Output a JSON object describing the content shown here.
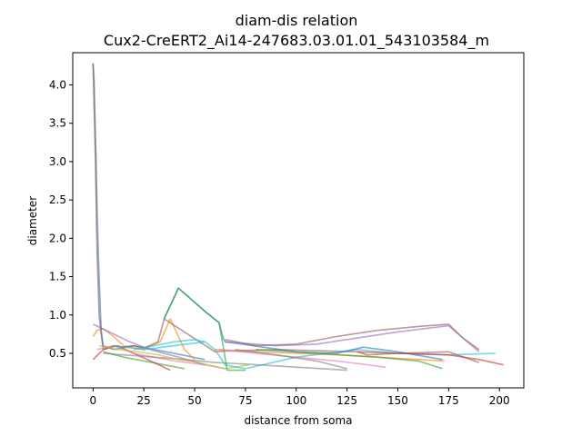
{
  "chart_data": {
    "type": "line",
    "title": "diam-dis relation",
    "subtitle": "Cux2-CreERT2_Ai14-247683.03.01.01_543103584_m",
    "xlabel": "distance from soma",
    "ylabel": "diameter",
    "xlim": [
      -10,
      212
    ],
    "ylim": [
      0.05,
      4.42
    ],
    "xticks": [
      0,
      25,
      50,
      75,
      100,
      125,
      150,
      175,
      200
    ],
    "yticks": [
      0.5,
      1.0,
      1.5,
      2.0,
      2.5,
      3.0,
      3.5,
      4.0
    ],
    "xtick_labels": [
      "0",
      "25",
      "50",
      "75",
      "100",
      "125",
      "150",
      "175",
      "200"
    ],
    "ytick_labels": [
      "0.5",
      "1.0",
      "1.5",
      "2.0",
      "2.5",
      "3.0",
      "3.5",
      "4.0"
    ],
    "grid": false,
    "legend": "none",
    "series": [
      {
        "color": "#1f77b4",
        "x": [
          0,
          0.5,
          1,
          1.5,
          2,
          2.5,
          3,
          3.5,
          4,
          4.5,
          5,
          10,
          20,
          30,
          40,
          55
        ],
        "y": [
          4.28,
          4.05,
          3.5,
          3.0,
          2.35,
          1.9,
          1.5,
          1.1,
          0.8,
          0.7,
          0.6,
          0.55,
          0.6,
          0.55,
          0.5,
          0.42
        ]
      },
      {
        "color": "#ff7f0e",
        "x": [
          0,
          2,
          5,
          10,
          15,
          25,
          33,
          38,
          45,
          50
        ],
        "y": [
          0.72,
          0.8,
          0.82,
          0.72,
          0.6,
          0.55,
          0.65,
          0.95,
          0.55,
          0.42
        ]
      },
      {
        "color": "#2ca02c",
        "x": [
          5,
          15,
          25,
          35,
          45
        ],
        "y": [
          0.52,
          0.45,
          0.4,
          0.35,
          0.3
        ]
      },
      {
        "color": "#d62728",
        "x": [
          0,
          5,
          12,
          20,
          30,
          38
        ],
        "y": [
          0.42,
          0.55,
          0.6,
          0.5,
          0.38,
          0.28
        ]
      },
      {
        "color": "#9467bd",
        "x": [
          0,
          8,
          18,
          28,
          42,
          55
        ],
        "y": [
          0.88,
          0.78,
          0.65,
          0.55,
          0.45,
          0.35
        ]
      },
      {
        "color": "#8c564b",
        "x": [
          0,
          1,
          2,
          3,
          4,
          5,
          10,
          15,
          20,
          25,
          32,
          35,
          60,
          65,
          90,
          130,
          135,
          150,
          175,
          190
        ],
        "y": [
          4.28,
          3.2,
          1.8,
          1.0,
          0.75,
          0.55,
          0.6,
          0.58,
          0.6,
          0.57,
          0.65,
          0.95,
          0.52,
          0.53,
          0.55,
          0.52,
          0.48,
          0.5,
          0.52,
          0.38
        ]
      },
      {
        "color": "#e377c2",
        "x": [
          2,
          10,
          20,
          30,
          40,
          55,
          65
        ],
        "y": [
          0.55,
          0.6,
          0.5,
          0.45,
          0.4,
          0.35,
          0.3
        ]
      },
      {
        "color": "#7f7f7f",
        "x": [
          5,
          15,
          30,
          45,
          60,
          75,
          100,
          125
        ],
        "y": [
          0.5,
          0.48,
          0.45,
          0.42,
          0.38,
          0.36,
          0.32,
          0.28
        ]
      },
      {
        "color": "#bcbd22",
        "x": [
          3,
          12,
          22,
          32,
          42,
          52,
          65,
          77
        ],
        "y": [
          0.6,
          0.55,
          0.52,
          0.48,
          0.42,
          0.38,
          0.3,
          0.35
        ]
      },
      {
        "color": "#17becf",
        "x": [
          10,
          25,
          40,
          55,
          60,
          65,
          75,
          100,
          130,
          150,
          175,
          198
        ],
        "y": [
          0.6,
          0.55,
          0.6,
          0.65,
          0.55,
          0.35,
          0.3,
          0.45,
          0.55,
          0.5,
          0.48,
          0.5
        ]
      },
      {
        "color": "#1f77b4",
        "x": [
          35,
          42,
          55,
          62,
          64,
          65,
          100,
          120,
          133,
          150,
          172
        ],
        "y": [
          0.95,
          1.35,
          1.05,
          0.9,
          0.7,
          0.65,
          0.52,
          0.5,
          0.58,
          0.52,
          0.42
        ]
      },
      {
        "color": "#2ca02c",
        "x": [
          35,
          42,
          55,
          62,
          64,
          66,
          75
        ],
        "y": [
          0.95,
          1.35,
          1.05,
          0.9,
          0.6,
          0.28,
          0.28
        ]
      },
      {
        "color": "#8c564b",
        "x": [
          65,
          80,
          100,
          120,
          140,
          160,
          175,
          182,
          190
        ],
        "y": [
          0.68,
          0.6,
          0.62,
          0.72,
          0.8,
          0.85,
          0.88,
          0.7,
          0.55
        ]
      },
      {
        "color": "#9467bd",
        "x": [
          65,
          90,
          110,
          130,
          150,
          175,
          190
        ],
        "y": [
          0.65,
          0.6,
          0.62,
          0.7,
          0.78,
          0.86,
          0.52
        ]
      },
      {
        "color": "#ff7f0e",
        "x": [
          60,
          80,
          100,
          120,
          140,
          160,
          173
        ],
        "y": [
          0.55,
          0.52,
          0.5,
          0.48,
          0.45,
          0.42,
          0.4
        ]
      },
      {
        "color": "#e377c2",
        "x": [
          62,
          80,
          100,
          120,
          144
        ],
        "y": [
          0.55,
          0.5,
          0.45,
          0.4,
          0.32
        ]
      },
      {
        "color": "#2ca02c",
        "x": [
          80,
          110,
          140,
          160,
          172
        ],
        "y": [
          0.55,
          0.5,
          0.45,
          0.4,
          0.3
        ]
      },
      {
        "color": "#d62728",
        "x": [
          130,
          150,
          175,
          190,
          202
        ],
        "y": [
          0.52,
          0.5,
          0.48,
          0.42,
          0.35
        ]
      },
      {
        "color": "#17becf",
        "x": [
          20,
          30,
          40,
          50,
          55
        ],
        "y": [
          0.55,
          0.6,
          0.65,
          0.68,
          0.65
        ]
      },
      {
        "color": "#7f7f7f",
        "x": [
          70,
          90,
          110,
          125
        ],
        "y": [
          0.55,
          0.48,
          0.4,
          0.3
        ]
      }
    ]
  }
}
